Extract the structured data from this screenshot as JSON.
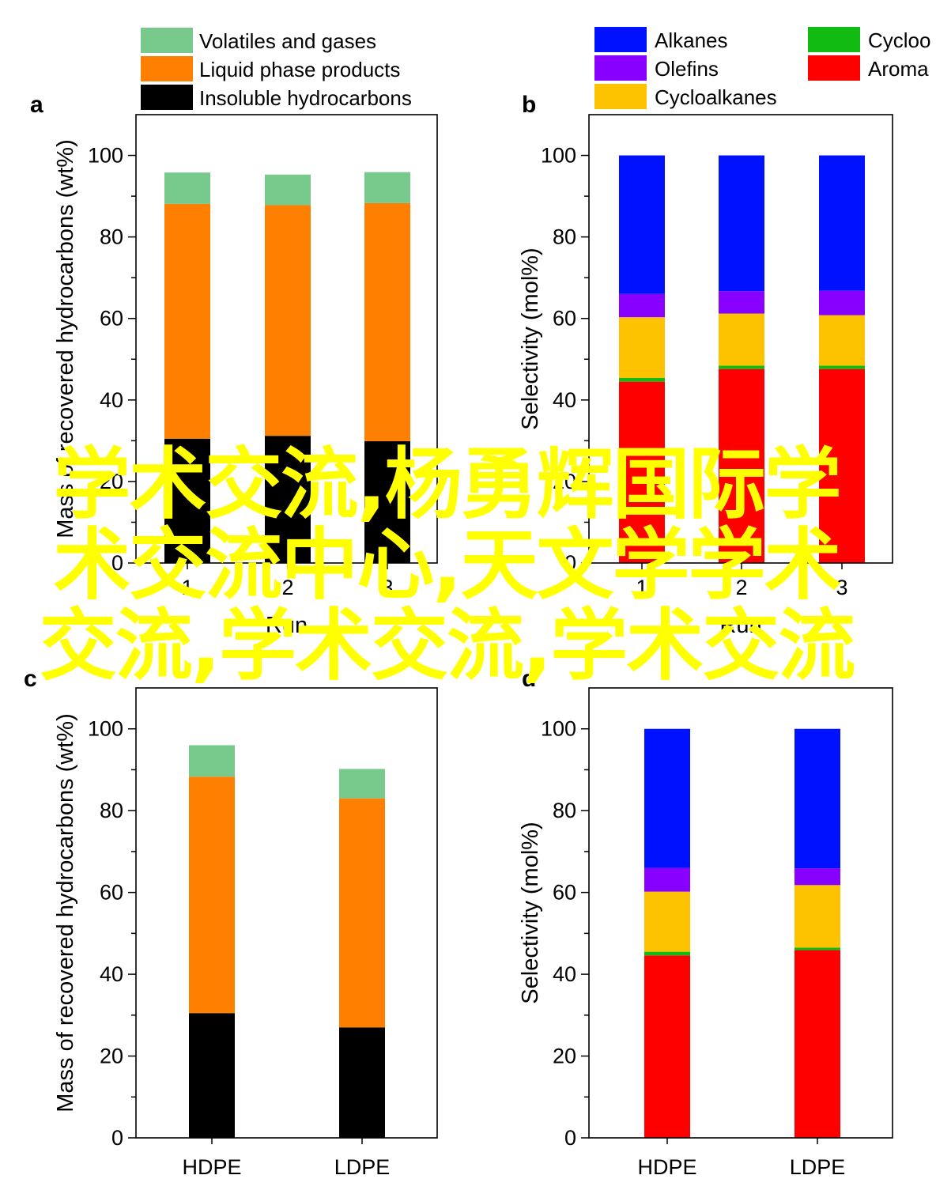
{
  "colors": {
    "volatiles": "#77c98c",
    "liquid": "#ff7f00",
    "insoluble": "#000000",
    "alkanes": "#0011ff",
    "olefins": "#8800ff",
    "cycloalkanes": "#fdc200",
    "cycloolefins": "#11bb11",
    "aromatics": "#ff0000",
    "watermark": "#ffff00"
  },
  "watermark_text": "学术交流,杨勇辉国际学术交流中心,天文学学术交流,学术交流,学术交流",
  "chart_data": [
    {
      "panel": "a",
      "type": "bar",
      "stacked": true,
      "xlabel": "Run",
      "ylabel": "Mass of recovered hydrocarbons (wt%)",
      "ylim": [
        0,
        110
      ],
      "yticks": [
        "0",
        "20",
        "40",
        "60",
        "80",
        "100"
      ],
      "categories": [
        "1",
        "2",
        "3"
      ],
      "legend_position": "top",
      "series": [
        {
          "name": "Insoluble hydrocarbons",
          "color_key": "insoluble",
          "values": [
            30.5,
            31.2,
            29.9
          ]
        },
        {
          "name": "Liquid phase products",
          "color_key": "liquid",
          "values": [
            57.6,
            56.6,
            58.4
          ]
        },
        {
          "name": "Volatiles and gases",
          "color_key": "volatiles",
          "values": [
            7.7,
            7.5,
            7.6
          ]
        }
      ],
      "legend": [
        "Volatiles and gases",
        "Liquid phase products",
        "Insoluble hydrocarbons"
      ]
    },
    {
      "panel": "b",
      "type": "bar",
      "stacked": true,
      "xlabel": "Run",
      "ylabel": "Selectivity (mol%)",
      "ylim": [
        0,
        110
      ],
      "yticks": [
        "0",
        "20",
        "40",
        "60",
        "80",
        "100"
      ],
      "categories": [
        "1",
        "2",
        "3"
      ],
      "legend_position": "top",
      "series": [
        {
          "name": "Aromatics",
          "color_key": "aromatics",
          "values": [
            44.5,
            47.6,
            47.6
          ]
        },
        {
          "name": "Cycloolefins",
          "color_key": "cycloolefins",
          "values": [
            0.9,
            0.8,
            0.8
          ]
        },
        {
          "name": "Cycloalkanes",
          "color_key": "cycloalkanes",
          "values": [
            14.9,
            12.8,
            12.4
          ]
        },
        {
          "name": "Olefins",
          "color_key": "olefins",
          "values": [
            5.7,
            5.5,
            6.0
          ]
        },
        {
          "name": "Alkanes",
          "color_key": "alkanes",
          "values": [
            34.0,
            33.3,
            33.2
          ]
        }
      ],
      "legend": [
        "Alkanes",
        "Olefins",
        "Cycloalkanes",
        "Cycloolefins",
        "Aromatics"
      ],
      "legend_visible": [
        "Alkanes",
        "Olefins",
        "Cycloalkanes",
        "Cycloo",
        "Aroma"
      ]
    },
    {
      "panel": "c",
      "type": "bar",
      "stacked": true,
      "xlabel": "",
      "ylabel": "Mass of recovered hydrocarbons (wt%)",
      "ylim": [
        0,
        110
      ],
      "yticks": [
        "0",
        "20",
        "40",
        "60",
        "80",
        "100"
      ],
      "categories": [
        "HDPE",
        "LDPE"
      ],
      "series": [
        {
          "name": "Insoluble hydrocarbons",
          "color_key": "insoluble",
          "values": [
            30.5,
            27.0
          ]
        },
        {
          "name": "Liquid phase products",
          "color_key": "liquid",
          "values": [
            57.8,
            56.0
          ]
        },
        {
          "name": "Volatiles and gases",
          "color_key": "volatiles",
          "values": [
            7.7,
            7.2
          ]
        }
      ]
    },
    {
      "panel": "d",
      "type": "bar",
      "stacked": true,
      "xlabel": "",
      "ylabel": "Selectivity (mol%)",
      "ylim": [
        0,
        110
      ],
      "yticks": [
        "0",
        "20",
        "40",
        "60",
        "80",
        "100"
      ],
      "categories": [
        "HDPE",
        "LDPE"
      ],
      "series": [
        {
          "name": "Aromatics",
          "color_key": "aromatics",
          "values": [
            44.6,
            45.9
          ]
        },
        {
          "name": "Cycloolefins",
          "color_key": "cycloolefins",
          "values": [
            0.9,
            0.6
          ]
        },
        {
          "name": "Cycloalkanes",
          "color_key": "cycloalkanes",
          "values": [
            14.7,
            15.3
          ]
        },
        {
          "name": "Olefins",
          "color_key": "olefins",
          "values": [
            5.8,
            4.1
          ]
        },
        {
          "name": "Alkanes",
          "color_key": "alkanes",
          "values": [
            34.0,
            34.1
          ]
        }
      ]
    }
  ]
}
